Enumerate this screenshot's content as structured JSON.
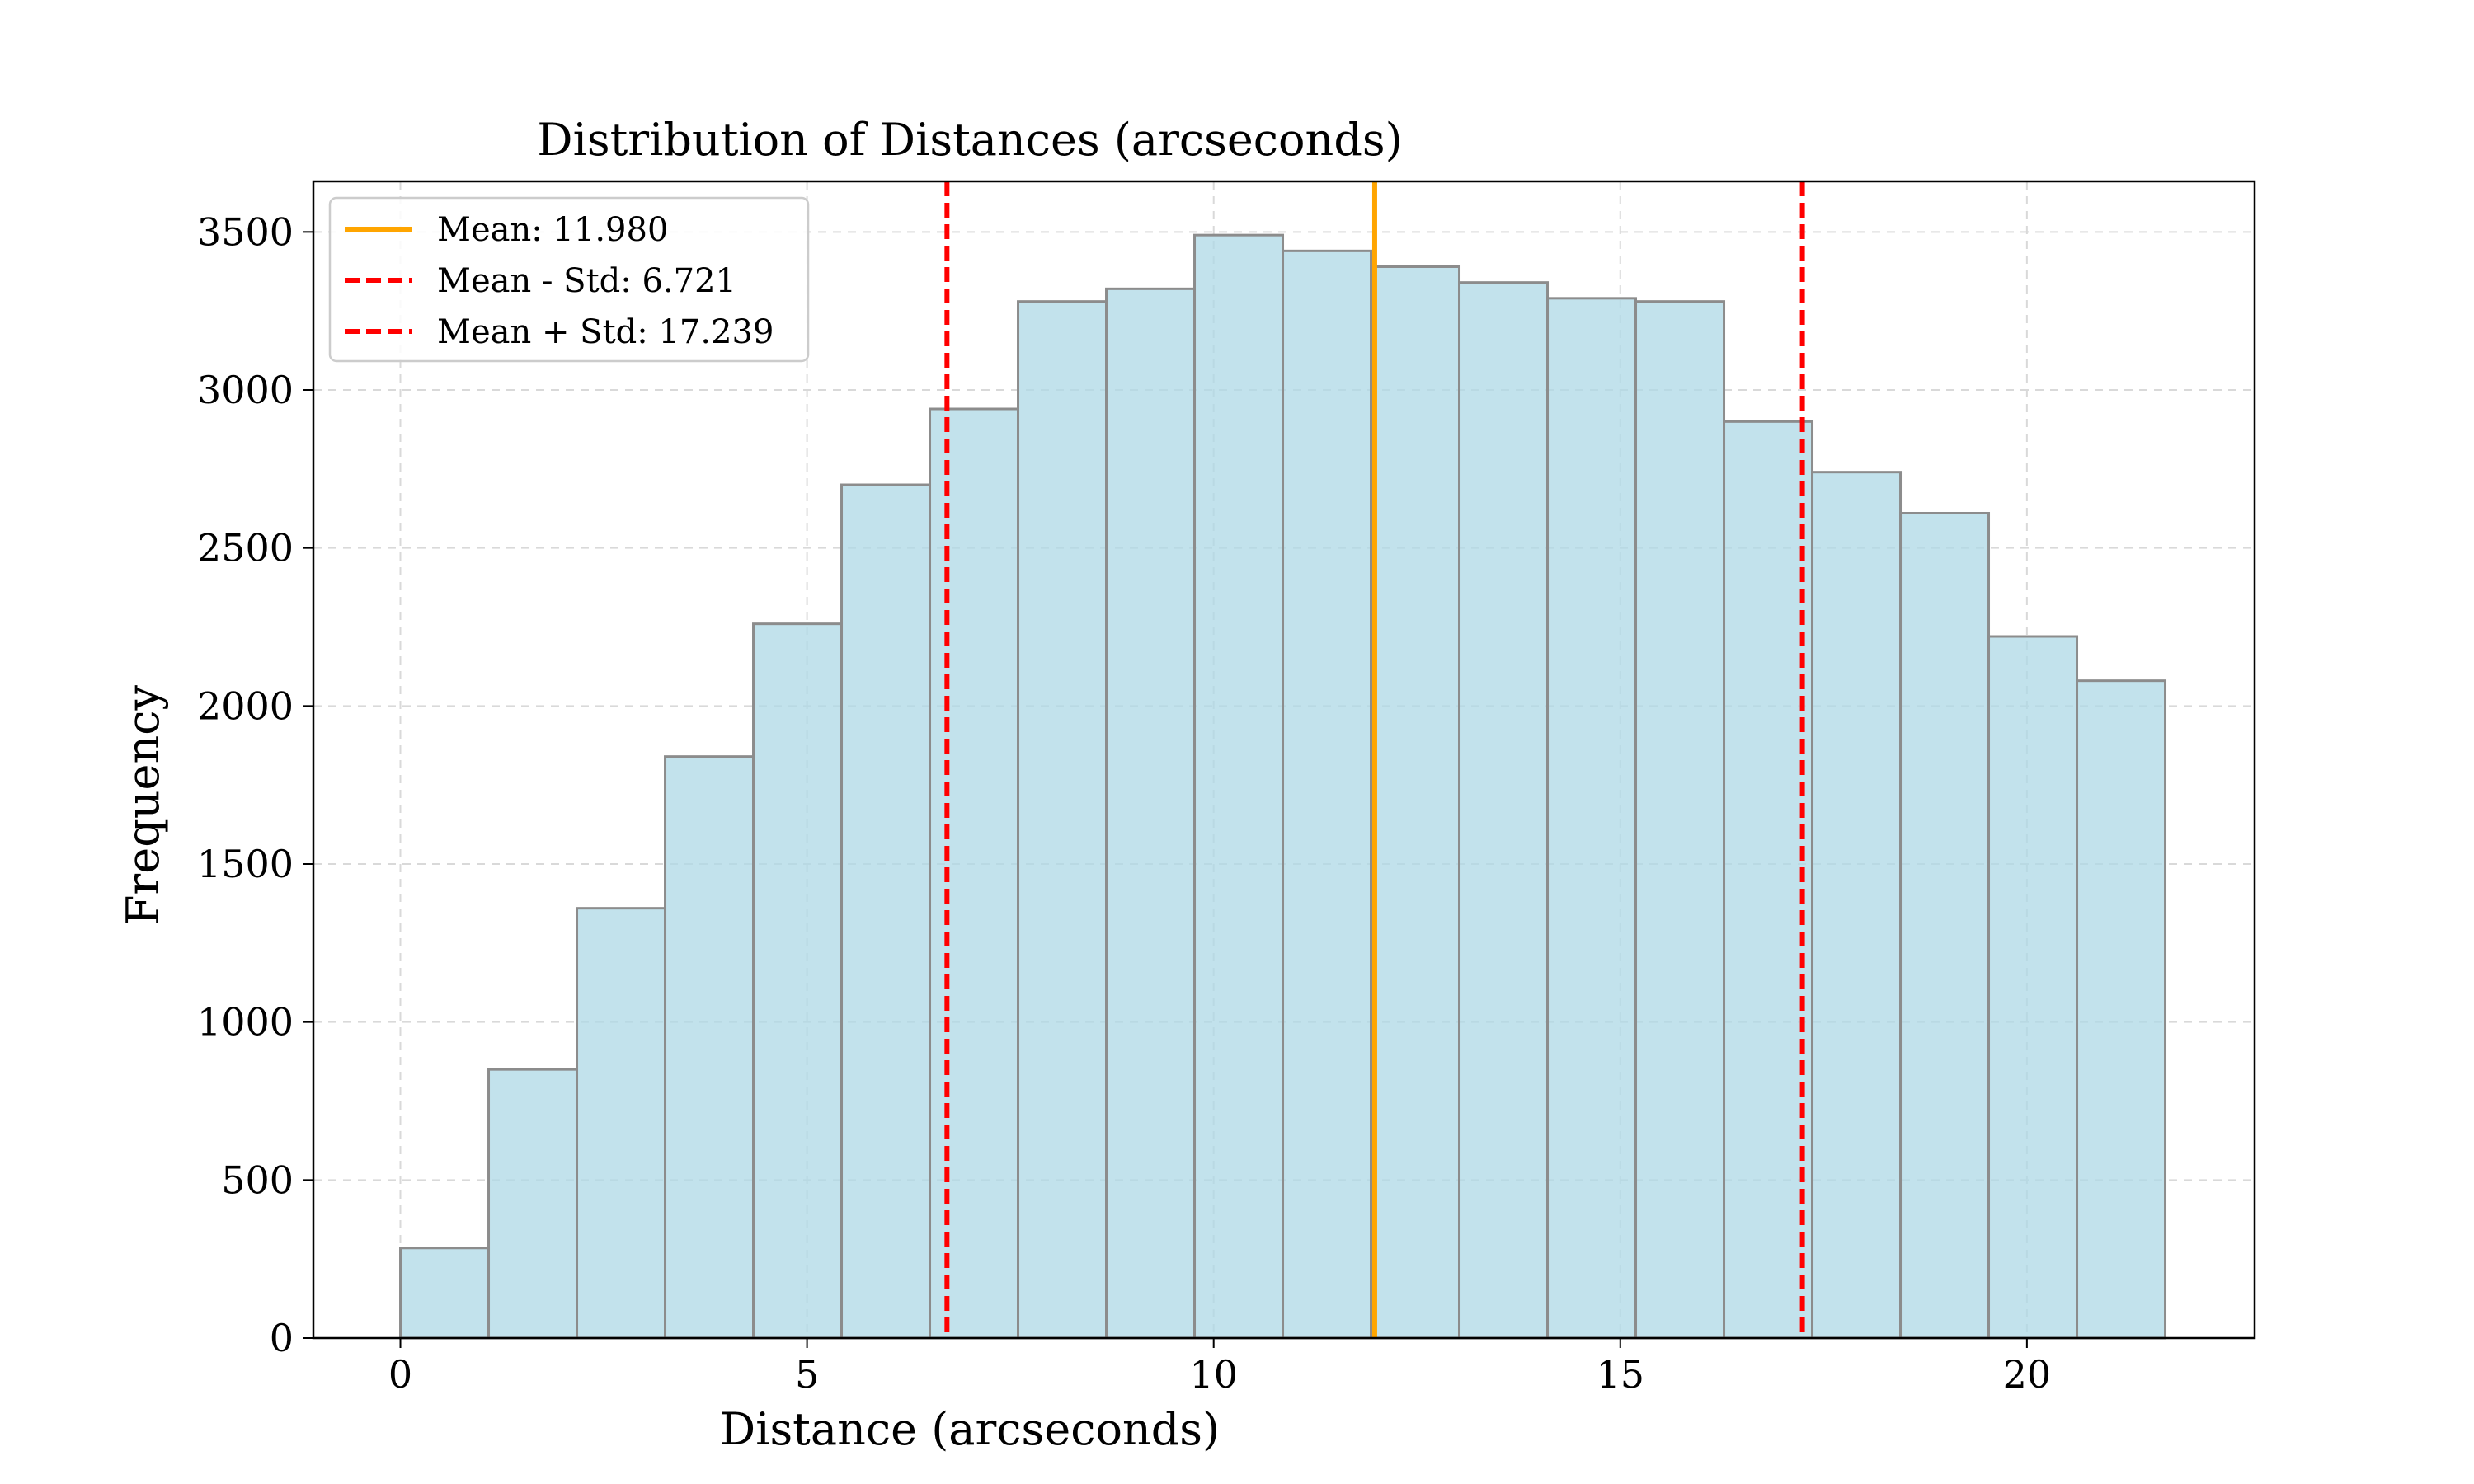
{
  "chart_data": {
    "type": "bar",
    "title": "Distribution of Distances (arcseconds)",
    "xlabel": "Distance (arcseconds)",
    "ylabel": "Frequency",
    "xlim": [
      -1.07,
      22.8
    ],
    "ylim": [
      0,
      3660
    ],
    "xticks": [
      0,
      5,
      10,
      15,
      20
    ],
    "yticks": [
      0,
      500,
      1000,
      1500,
      2000,
      2500,
      3000,
      3500
    ],
    "grid": true,
    "bin_edges": [
      0.0,
      1.085,
      2.17,
      3.255,
      4.34,
      5.425,
      6.51,
      7.595,
      8.68,
      9.765,
      10.85,
      11.935,
      13.02,
      14.105,
      15.19,
      16.275,
      17.36,
      18.445,
      19.53,
      20.615,
      21.7
    ],
    "values": [
      285,
      850,
      1360,
      1840,
      2260,
      2700,
      2940,
      3280,
      3320,
      3490,
      3440,
      3390,
      3340,
      3290,
      3280,
      2900,
      2740,
      2610,
      2220,
      2080
    ],
    "bar_color": "#add8e6",
    "vlines": [
      {
        "x": 11.98,
        "label": "Mean: 11.980",
        "color": "#ffa500",
        "style": "solid"
      },
      {
        "x": 6.721,
        "label": "Mean - Std: 6.721",
        "color": "#ff0000",
        "style": "dashed"
      },
      {
        "x": 17.239,
        "label": "Mean + Std: 17.239",
        "color": "#ff0000",
        "style": "dashed"
      }
    ],
    "legend_position": "top-left"
  }
}
